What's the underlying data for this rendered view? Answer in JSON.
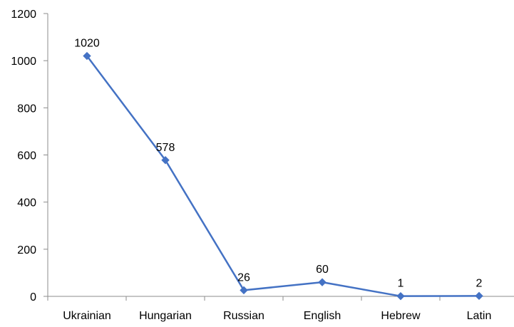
{
  "chart_data": {
    "type": "line",
    "title": "",
    "xlabel": "",
    "ylabel": "",
    "categories": [
      "Ukrainian",
      "Hungarian",
      "Russian",
      "English",
      "Hebrew",
      "Latin"
    ],
    "series": [
      {
        "values": [
          1020,
          578,
          26,
          60,
          1,
          2
        ],
        "color": "#4472C4",
        "marker": "diamond"
      }
    ],
    "data_labels": [
      "1020",
      "578",
      "26",
      "60",
      "1",
      "2"
    ],
    "ylim": [
      0,
      1200
    ],
    "yticks": [
      0,
      200,
      400,
      600,
      800,
      1000,
      1200
    ],
    "ytick_labels": [
      "0",
      "200",
      "400",
      "600",
      "800",
      "1000",
      "1200"
    ],
    "grid": false,
    "legend": "none"
  }
}
